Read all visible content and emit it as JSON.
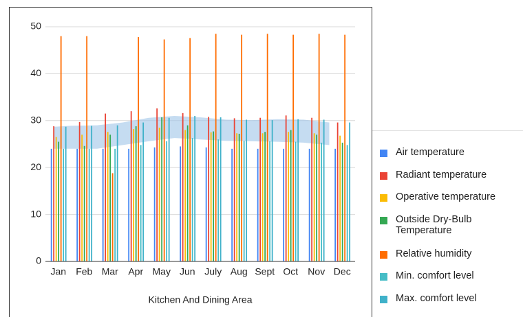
{
  "chart_data": {
    "type": "bar",
    "x_label": "Kitchen And Dining Area",
    "categories": [
      "Jan",
      "Feb",
      "Mar",
      "Apr",
      "May",
      "Jun",
      "July",
      "Aug",
      "Sept",
      "Oct",
      "Nov",
      "Dec"
    ],
    "series": [
      {
        "name": "Air temperature",
        "color": "#4285f4",
        "values": [
          24,
          24,
          24,
          24,
          24.3,
          24.5,
          24.3,
          24,
          24,
          24,
          24,
          24
        ]
      },
      {
        "name": "Radiant temperature",
        "color": "#ea4335",
        "values": [
          28.8,
          29.7,
          31.5,
          32,
          32.6,
          31.6,
          30.8,
          30.5,
          30.6,
          31.1,
          30.6,
          29.6
        ]
      },
      {
        "name": "Operative temperature",
        "color": "#fbbc04",
        "values": [
          26.5,
          27,
          27.6,
          28.2,
          28.5,
          28,
          27.5,
          27.3,
          27.3,
          27.6,
          27.3,
          26.8
        ]
      },
      {
        "name": "Outside Dry-Bulb Temperature",
        "color": "#34a853",
        "values": [
          25.5,
          24.6,
          27,
          28.8,
          30.7,
          29,
          27.7,
          27.2,
          27.6,
          28,
          27,
          25.3
        ]
      },
      {
        "name": "Relative humidity",
        "color": "#ff6d01",
        "values": [
          48,
          48,
          18.8,
          47.8,
          47.3,
          47.6,
          48.5,
          48.3,
          48.5,
          48.3,
          48.5,
          48.3
        ]
      },
      {
        "name": "Min. comfort level",
        "color": "#46bdc6",
        "values": [
          24,
          24,
          24,
          24.8,
          25.6,
          26.3,
          26,
          25.7,
          25.6,
          25.5,
          25.3,
          24.8
        ]
      },
      {
        "name": "Max. comfort level",
        "color": "#3fb1c9",
        "values": [
          28.7,
          28.9,
          29,
          29.6,
          30.6,
          31,
          30.7,
          30.2,
          30.1,
          30.3,
          30.2,
          29.6
        ]
      }
    ],
    "band_color": "#9fc5e8",
    "ylim": [
      0,
      50
    ],
    "yticks": [
      0,
      10,
      20,
      30,
      40,
      50
    ],
    "grid": true,
    "legend": "right"
  }
}
